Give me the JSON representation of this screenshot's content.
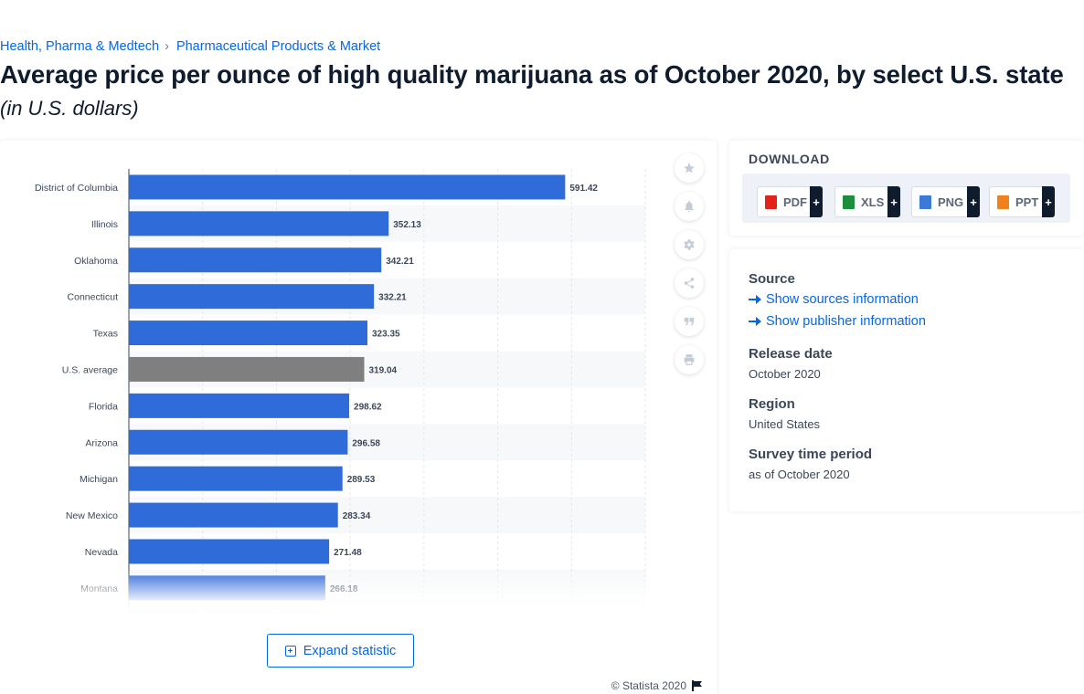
{
  "breadcrumb": {
    "items": [
      "Health, Pharma & Medtech",
      "Pharmaceutical Products & Market"
    ],
    "separator": "›"
  },
  "title": "Average price per ounce of high quality marijuana as of October 2020, by select U.S. state",
  "subtitle": "(in U.S. dollars)",
  "chart_data": {
    "type": "bar",
    "orientation": "horizontal",
    "categories": [
      "District of Columbia",
      "Illinois",
      "Oklahoma",
      "Connecticut",
      "Texas",
      "U.S. average",
      "Florida",
      "Arizona",
      "Michigan",
      "New Mexico",
      "Nevada",
      "Montana"
    ],
    "values": [
      591.42,
      352.13,
      342.21,
      332.21,
      323.35,
      319.04,
      298.62,
      296.58,
      289.53,
      283.34,
      271.48,
      266.18
    ],
    "xlim": [
      0,
      700
    ],
    "grid": true,
    "colors": {
      "bar": "#2f6bd9",
      "highlight": "#7f7f7f",
      "highlight_category": "U.S. average"
    },
    "truncated": true
  },
  "toolbar": {
    "icons": [
      "star-icon",
      "bell-icon",
      "gear-icon",
      "share-icon",
      "quote-icon",
      "print-icon"
    ]
  },
  "expand_label": "Expand statistic",
  "copyright": "© Statista 2020",
  "download": {
    "title": "DOWNLOAD",
    "formats": [
      {
        "label": "PDF",
        "color": "#e2231a"
      },
      {
        "label": "XLS",
        "color": "#1d8f3c"
      },
      {
        "label": "PNG",
        "color": "#3c7ad8"
      },
      {
        "label": "PPT",
        "color": "#f0821e"
      }
    ],
    "plus": "+"
  },
  "info": {
    "source_heading": "Source",
    "show_sources": "Show sources information",
    "show_publisher": "Show publisher information",
    "release_heading": "Release date",
    "release_value": "October 2020",
    "region_heading": "Region",
    "region_value": "United States",
    "survey_heading": "Survey time period",
    "survey_value": "as of October 2020"
  }
}
